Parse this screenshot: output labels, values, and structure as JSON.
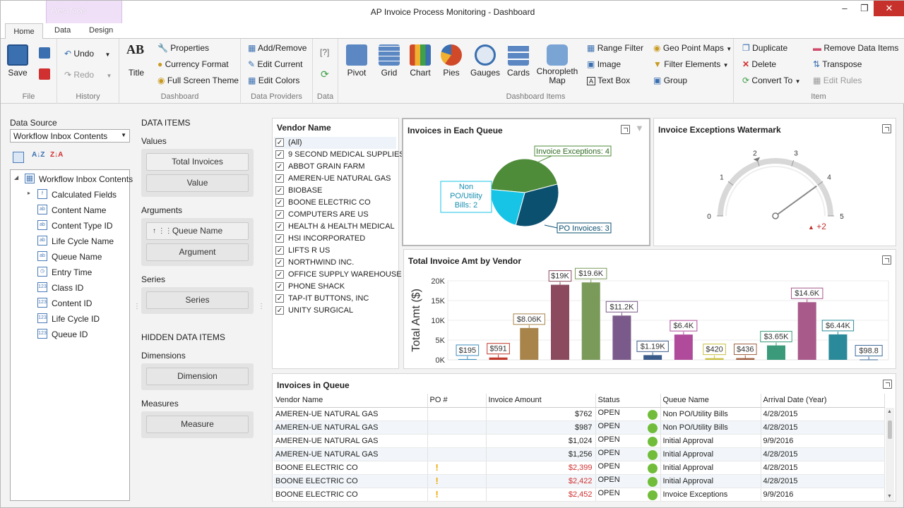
{
  "window": {
    "title": "AP Invoice Process Monitoring - Dashboard",
    "context_tab": "Pies Tools"
  },
  "tabs": [
    "Home",
    "Data",
    "Design"
  ],
  "ribbon": {
    "file": {
      "label": "File",
      "save": "Save"
    },
    "history": {
      "label": "History",
      "undo": "Undo",
      "redo": "Redo"
    },
    "dashboard": {
      "label": "Dashboard",
      "title": "Title",
      "properties": "Properties",
      "currency_format": "Currency Format",
      "full_screen_theme": "Full Screen Theme"
    },
    "data_providers": {
      "label": "Data Providers",
      "add_remove": "Add/Remove",
      "edit_current": "Edit Current",
      "edit_colors": "Edit Colors"
    },
    "data": {
      "label": "Data"
    },
    "dashboard_items": {
      "label": "Dashboard Items",
      "pivot": "Pivot",
      "grid": "Grid",
      "chart": "Chart",
      "pies": "Pies",
      "gauges": "Gauges",
      "cards": "Cards",
      "choropleth": "Choropleth Map",
      "range_filter": "Range Filter",
      "image": "Image",
      "text_box": "Text Box",
      "geo_point": "Geo Point Maps",
      "filter_elements": "Filter Elements",
      "group": "Group"
    },
    "item": {
      "label": "Item",
      "duplicate": "Duplicate",
      "delete": "Delete",
      "convert_to": "Convert To",
      "remove_data_items": "Remove Data Items",
      "transpose": "Transpose",
      "edit_rules": "Edit Rules"
    }
  },
  "data_source": {
    "label": "Data Source",
    "selected": "Workflow Inbox Contents",
    "tree": [
      {
        "name": "Workflow Inbox Contents",
        "icon": "table"
      },
      {
        "name": "Calculated Fields",
        "icon": "fx"
      },
      {
        "name": "Content Name",
        "icon": "ab"
      },
      {
        "name": "Content Type ID",
        "icon": "ab"
      },
      {
        "name": "Life Cycle Name",
        "icon": "ab"
      },
      {
        "name": "Queue Name",
        "icon": "ab"
      },
      {
        "name": "Entry Time",
        "icon": "clock"
      },
      {
        "name": "Class ID",
        "icon": "123"
      },
      {
        "name": "Content ID",
        "icon": "123"
      },
      {
        "name": "Life Cycle ID",
        "icon": "123"
      },
      {
        "name": "Queue ID",
        "icon": "123"
      }
    ]
  },
  "data_items": {
    "header": "DATA ITEMS",
    "values_label": "Values",
    "values": [
      "Total Invoices",
      "Value"
    ],
    "arguments_label": "Arguments",
    "arguments": [
      "Queue Name",
      "Argument"
    ],
    "series_label": "Series",
    "series": [
      "Series"
    ],
    "hidden_header": "HIDDEN DATA ITEMS",
    "dimensions_label": "Dimensions",
    "dimensions": [
      "Dimension"
    ],
    "measures_label": "Measures",
    "measures": [
      "Measure"
    ]
  },
  "vendor_filter": {
    "title": "Vendor Name",
    "items": [
      "(All)",
      "9 SECOND MEDICAL SUPPLIES",
      "ABBOT GRAIN FARM",
      "AMEREN-UE NATURAL GAS",
      "BIOBASE",
      "BOONE ELECTRIC CO",
      "COMPUTERS ARE US",
      "HEALTH & HEALTH MEDICAL",
      "HSI INCORPORATED",
      "LIFTS R US",
      "NORTHWIND INC.",
      "OFFICE SUPPLY WAREHOUSE",
      "PHONE SHACK",
      "TAP-IT BUTTONS, INC",
      "UNITY SURGICAL"
    ]
  },
  "pie": {
    "title": "Invoices in Each Queue",
    "slices": [
      {
        "label": "Invoice Exceptions: 4",
        "value": 4,
        "color": "#4e8c3a"
      },
      {
        "label": "PO Invoices: 3",
        "value": 3,
        "color": "#0c5070"
      },
      {
        "label": "Non PO/Utility Bills: 2",
        "label_lines": [
          "Non",
          "PO/Utility",
          "Bills: 2"
        ],
        "value": 2,
        "color": "#17c4e6"
      }
    ]
  },
  "gauge": {
    "title": "Invoice Exceptions Watermark",
    "min": 0,
    "max": 5,
    "ticks": [
      "0",
      "1",
      "2",
      "3",
      "4",
      "5"
    ],
    "value": 4,
    "target": 2,
    "delta": "+2"
  },
  "chart_data": {
    "type": "bar",
    "title": "Total Invoice Amt by Vendor",
    "ylabel": "Total Amt ($)",
    "ylim": [
      0,
      20000
    ],
    "yticks": [
      "0K",
      "5K",
      "10K",
      "15K",
      "20K"
    ],
    "labels": [
      "$195",
      "$591",
      "$8.06K",
      "$19K",
      "$19.6K",
      "$11.2K",
      "$1.19K",
      "$6.4K",
      "$420",
      "$436",
      "$3.65K",
      "$14.6K",
      "$6.44K",
      "$98.8"
    ],
    "values": [
      195,
      591,
      8060,
      19000,
      19600,
      11200,
      1190,
      6400,
      420,
      436,
      3650,
      14600,
      6440,
      98.8
    ],
    "colors": [
      "#3d8fbf",
      "#c0392b",
      "#a8844a",
      "#8b4a5e",
      "#7a9a5a",
      "#7a5a8a",
      "#3a5a8a",
      "#b04a9a",
      "#c8c040",
      "#a06040",
      "#3a9a7a",
      "#a85a8a",
      "#2a8a9a",
      "#3d6a9a"
    ]
  },
  "grid": {
    "title": "Invoices in Queue",
    "columns": [
      "Vendor Name",
      "PO #",
      "Invoice Amount",
      "Status",
      "Queue Name",
      "Arrival Date (Year)"
    ],
    "rows": [
      {
        "vendor": "AMEREN-UE NATURAL GAS",
        "po": "",
        "amount": "$762",
        "warn": false,
        "status": "OPEN",
        "queue": "Non PO/Utility Bills",
        "date": "4/28/2015"
      },
      {
        "vendor": "AMEREN-UE NATURAL GAS",
        "po": "",
        "amount": "$987",
        "warn": false,
        "status": "OPEN",
        "queue": "Non PO/Utility Bills",
        "date": "4/28/2015"
      },
      {
        "vendor": "AMEREN-UE NATURAL GAS",
        "po": "",
        "amount": "$1,024",
        "warn": false,
        "status": "OPEN",
        "queue": "Initial Approval",
        "date": "9/9/2016"
      },
      {
        "vendor": "AMEREN-UE NATURAL GAS",
        "po": "",
        "amount": "$1,256",
        "warn": false,
        "status": "OPEN",
        "queue": "Initial Approval",
        "date": "4/28/2015"
      },
      {
        "vendor": "BOONE ELECTRIC CO",
        "po": "",
        "amount": "$2,399",
        "warn": true,
        "status": "OPEN",
        "queue": "Initial Approval",
        "date": "4/28/2015"
      },
      {
        "vendor": "BOONE ELECTRIC CO",
        "po": "",
        "amount": "$2,422",
        "warn": true,
        "status": "OPEN",
        "queue": "Initial Approval",
        "date": "4/28/2015"
      },
      {
        "vendor": "BOONE ELECTRIC CO",
        "po": "",
        "amount": "$2,452",
        "warn": true,
        "status": "OPEN",
        "queue": "Invoice Exceptions",
        "date": "9/9/2016"
      }
    ]
  }
}
